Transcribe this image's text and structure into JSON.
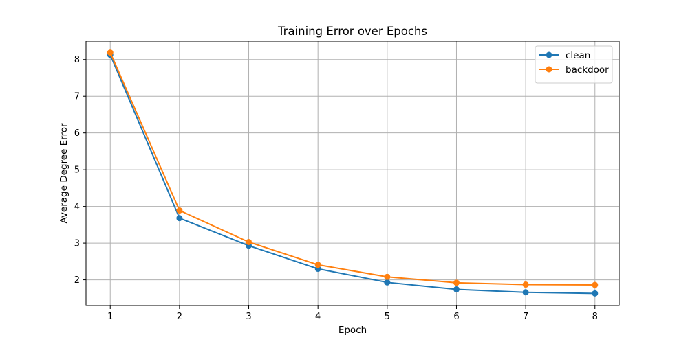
{
  "chart_data": {
    "type": "line",
    "title": "Training Error over Epochs",
    "xlabel": "Epoch",
    "ylabel": "Average Degree Error",
    "x": [
      1,
      2,
      3,
      4,
      5,
      6,
      7,
      8
    ],
    "xlim": [
      0.65,
      8.35
    ],
    "ylim": [
      1.3,
      8.5
    ],
    "xticks": [
      1,
      2,
      3,
      4,
      5,
      6,
      7,
      8
    ],
    "yticks": [
      2,
      3,
      4,
      5,
      6,
      7,
      8
    ],
    "grid": true,
    "legend_position": "top-right",
    "series": [
      {
        "name": "clean",
        "color": "#1f77b4",
        "marker": "circle",
        "values": [
          8.13,
          3.68,
          2.93,
          2.3,
          1.93,
          1.74,
          1.66,
          1.63
        ]
      },
      {
        "name": "backdoor",
        "color": "#ff7f0e",
        "marker": "circle",
        "values": [
          8.19,
          3.89,
          3.03,
          2.41,
          2.08,
          1.92,
          1.87,
          1.86
        ]
      }
    ]
  }
}
